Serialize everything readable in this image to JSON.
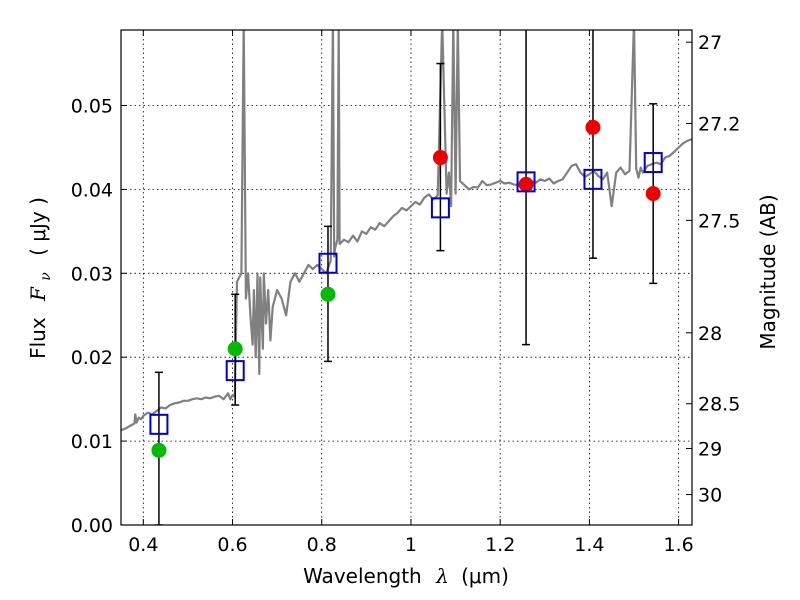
{
  "chart_data": {
    "type": "scatter",
    "xlabel_prefix": "Wavelength",
    "xlabel_symbol": "λ",
    "xlabel_unit": "(μm)",
    "ylabel_prefix": "Flux",
    "ylabel_symbol": "F",
    "ylabel_sub": "ν",
    "ylabel_unit": "( μJy )",
    "y2label": "Magnitude (AB)",
    "xlim": [
      0.35,
      1.63
    ],
    "ylim": [
      0.0,
      0.059
    ],
    "grid": true,
    "x_ticks": [
      0.4,
      0.6,
      0.8,
      1.0,
      1.2,
      1.4,
      1.6
    ],
    "x_tick_labels": [
      "0.4",
      "0.6",
      "0.8",
      "1",
      "1.2",
      "1.4",
      "1.6"
    ],
    "y_ticks": [
      0.0,
      0.01,
      0.02,
      0.03,
      0.04,
      0.05
    ],
    "y_tick_labels": [
      "0.00",
      "0.01",
      "0.02",
      "0.03",
      "0.04",
      "0.05"
    ],
    "y2_ticks": [
      27,
      27.2,
      27.5,
      28,
      28.5,
      29,
      30
    ],
    "y2_tick_labels": [
      "27",
      "27.2",
      "27.5",
      "28",
      "28.5",
      "29",
      "30"
    ],
    "colors": {
      "model": "#808080",
      "green_points": "#00bb00",
      "red_points": "#ee0000",
      "model_boxes": "#0000cc",
      "errorbars": "#000000"
    },
    "model_spectrum": {
      "x": [
        0.35,
        0.36,
        0.37,
        0.38,
        0.382,
        0.385,
        0.39,
        0.395,
        0.4,
        0.41,
        0.42,
        0.43,
        0.44,
        0.45,
        0.46,
        0.47,
        0.48,
        0.49,
        0.5,
        0.51,
        0.52,
        0.53,
        0.54,
        0.55,
        0.56,
        0.57,
        0.58,
        0.59,
        0.595,
        0.6,
        0.605,
        0.61,
        0.62,
        0.625,
        0.63,
        0.635,
        0.64,
        0.645,
        0.648,
        0.652,
        0.656,
        0.658,
        0.66,
        0.662,
        0.665,
        0.668,
        0.67,
        0.675,
        0.68,
        0.685,
        0.69,
        0.695,
        0.7,
        0.71,
        0.72,
        0.73,
        0.74,
        0.75,
        0.76,
        0.77,
        0.78,
        0.79,
        0.8,
        0.81,
        0.82,
        0.825,
        0.828,
        0.83,
        0.835,
        0.838,
        0.84,
        0.85,
        0.86,
        0.87,
        0.88,
        0.89,
        0.9,
        0.91,
        0.92,
        0.93,
        0.94,
        0.95,
        0.96,
        0.97,
        0.98,
        0.99,
        1.0,
        1.01,
        1.02,
        1.03,
        1.04,
        1.05,
        1.06,
        1.07,
        1.08,
        1.085,
        1.09,
        1.095,
        1.1,
        1.105,
        1.11,
        1.12,
        1.13,
        1.14,
        1.15,
        1.16,
        1.17,
        1.18,
        1.19,
        1.2,
        1.21,
        1.22,
        1.23,
        1.24,
        1.25,
        1.26,
        1.27,
        1.28,
        1.29,
        1.3,
        1.31,
        1.32,
        1.33,
        1.34,
        1.35,
        1.36,
        1.37,
        1.38,
        1.39,
        1.4,
        1.41,
        1.42,
        1.43,
        1.44,
        1.45,
        1.46,
        1.47,
        1.48,
        1.49,
        1.5,
        1.505,
        1.51,
        1.515,
        1.52,
        1.53,
        1.54,
        1.55,
        1.56,
        1.57,
        1.58,
        1.59,
        1.6,
        1.61,
        1.62,
        1.63
      ],
      "y": [
        0.0113,
        0.0115,
        0.0118,
        0.0121,
        0.0132,
        0.0122,
        0.0128,
        0.0126,
        0.013,
        0.0134,
        0.0132,
        0.0136,
        0.014,
        0.0139,
        0.0143,
        0.0145,
        0.0146,
        0.0148,
        0.0148,
        0.015,
        0.0151,
        0.015,
        0.0152,
        0.0151,
        0.0153,
        0.0154,
        0.015,
        0.0157,
        0.015,
        0.0155,
        0.0153,
        0.029,
        0.03,
        0.06,
        0.027,
        0.03,
        0.025,
        0.0215,
        0.028,
        0.02,
        0.03,
        0.023,
        0.018,
        0.0295,
        0.025,
        0.021,
        0.03,
        0.024,
        0.028,
        0.022,
        0.026,
        0.027,
        0.028,
        0.027,
        0.025,
        0.029,
        0.03,
        0.029,
        0.03,
        0.031,
        0.0305,
        0.031,
        0.0305,
        0.03,
        0.0315,
        0.06,
        0.032,
        0.033,
        0.034,
        0.06,
        0.0335,
        0.034,
        0.0337,
        0.0345,
        0.0338,
        0.035,
        0.0347,
        0.0355,
        0.0352,
        0.036,
        0.0356,
        0.0362,
        0.0368,
        0.0372,
        0.0378,
        0.0375,
        0.038,
        0.0385,
        0.0382,
        0.039,
        0.0394,
        0.0388,
        0.0393,
        0.06,
        0.0395,
        0.042,
        0.038,
        0.06,
        0.0395,
        0.06,
        0.041,
        0.0405,
        0.04,
        0.0403,
        0.0402,
        0.041,
        0.0405,
        0.0406,
        0.0408,
        0.041,
        0.0407,
        0.0408,
        0.0406,
        0.0405,
        0.0404,
        0.0408,
        0.041,
        0.0408,
        0.0412,
        0.041,
        0.0413,
        0.0407,
        0.041,
        0.0412,
        0.042,
        0.0428,
        0.043,
        0.042,
        0.0415,
        0.0418,
        0.0422,
        0.0416,
        0.0412,
        0.042,
        0.038,
        0.042,
        0.0426,
        0.0418,
        0.0422,
        0.06,
        0.0425,
        0.0414,
        0.0426,
        0.042,
        0.0428,
        0.043,
        0.0432,
        0.043,
        0.0438,
        0.044,
        0.0445,
        0.045,
        0.0455,
        0.0458,
        0.046
      ]
    },
    "series": [
      {
        "marker": "circle",
        "color_key": "green_points",
        "x": [
          0.435,
          0.606,
          0.814
        ],
        "y": [
          0.0089,
          0.021,
          0.0275
        ],
        "yerr": [
          0.0,
          0.0,
          0.0
        ]
      },
      {
        "marker": "circle",
        "color_key": "red_points",
        "x": [
          1.066,
          1.258,
          1.408,
          1.543
        ],
        "y": [
          0.0438,
          0.0406,
          0.0474,
          0.0395
        ],
        "yerr": [
          0.0,
          0.0,
          0.0,
          0.0
        ]
      },
      {
        "marker": "open-square",
        "color_key": "model_boxes",
        "x": [
          0.435,
          0.606,
          0.814,
          1.066,
          1.258,
          1.408,
          1.543
        ],
        "y": [
          0.012,
          0.0184,
          0.0312,
          0.0378,
          0.0409,
          0.0412,
          0.0432
        ]
      }
    ],
    "errorbars": [
      {
        "x": 0.435,
        "low": 0.0,
        "high": 0.0182
      },
      {
        "x": 0.606,
        "low": 0.0143,
        "high": 0.0275
      },
      {
        "x": 0.814,
        "low": 0.0195,
        "high": 0.0356
      },
      {
        "x": 1.066,
        "low": 0.0327,
        "high": 0.055
      },
      {
        "x": 1.258,
        "low": 0.0215,
        "high": 0.06
      },
      {
        "x": 1.408,
        "low": 0.0318,
        "high": 0.06
      },
      {
        "x": 1.543,
        "low": 0.0288,
        "high": 0.0502
      }
    ]
  }
}
